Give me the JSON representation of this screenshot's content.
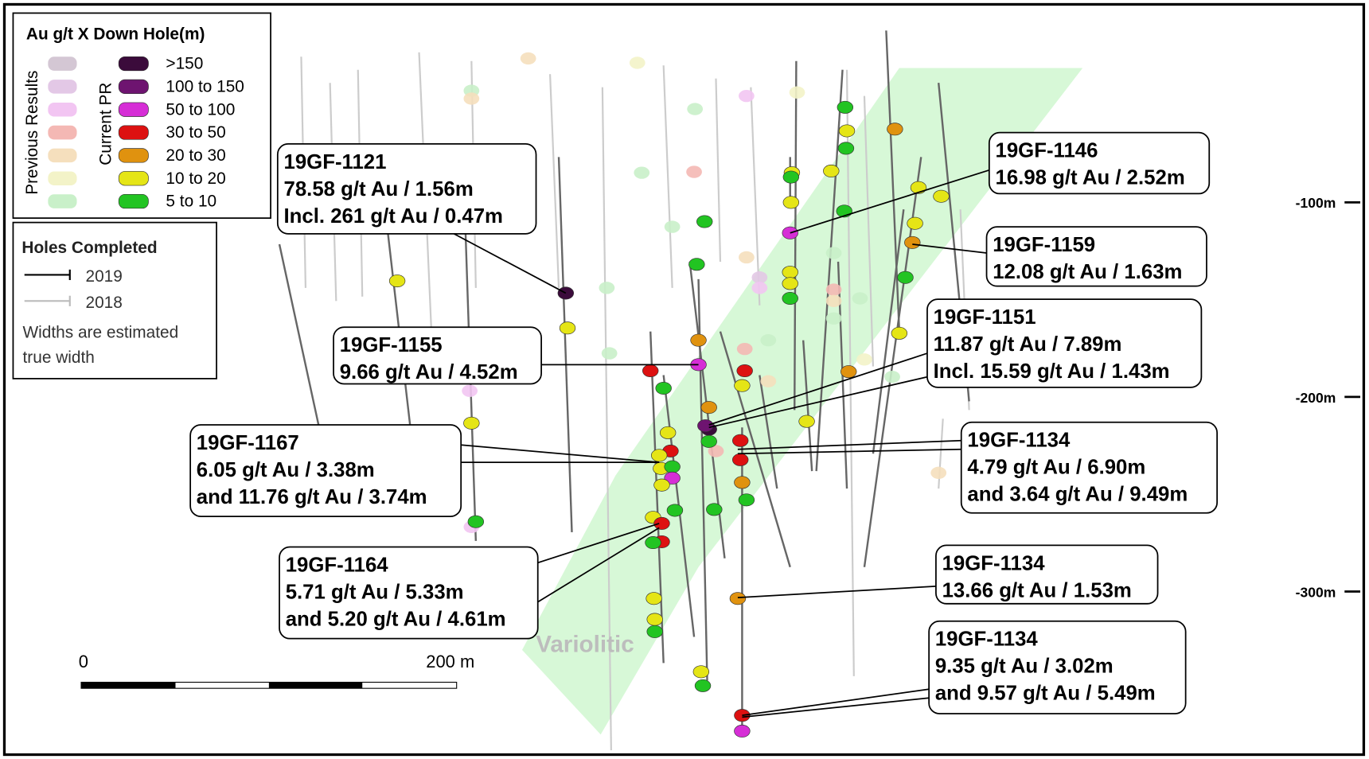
{
  "legend": {
    "title": "Au g/t X Down Hole(m)",
    "group_previous": "Previous Results",
    "group_current": "Current PR",
    "ranges": [
      ">150",
      "100 to 150",
      "50 to 100",
      "30 to 50",
      "20 to 30",
      "10 to 20",
      "5 to 10"
    ]
  },
  "holes_legend": {
    "title": "Holes Completed",
    "items": [
      "2019",
      "2018"
    ],
    "note": [
      "Widths are estimated",
      "true width"
    ]
  },
  "callouts": [
    {
      "lines": [
        "19GF-1121",
        "78.58 g/t Au / 1.56m",
        "Incl. 261 g/t Au / 0.47m"
      ]
    },
    {
      "lines": [
        "19GF-1146",
        "16.98 g/t Au / 2.52m"
      ]
    },
    {
      "lines": [
        "19GF-1159",
        "12.08 g/t Au / 1.63m"
      ]
    },
    {
      "lines": [
        "19GF-1151",
        "11.87 g/t Au / 7.89m",
        "Incl. 15.59 g/t Au / 1.43m"
      ]
    },
    {
      "lines": [
        "19GF-1155",
        "9.66 g/t Au / 4.52m"
      ]
    },
    {
      "lines": [
        "19GF-1167",
        "6.05 g/t Au / 3.38m",
        "and 11.76 g/t Au / 3.74m"
      ]
    },
    {
      "lines": [
        "19GF-1134",
        "4.79 g/t Au / 6.90m",
        "and 3.64 g/t Au / 9.49m"
      ]
    },
    {
      "lines": [
        "19GF-1164",
        "5.71 g/t Au / 5.33m",
        "and 5.20 g/t Au / 4.61m"
      ]
    },
    {
      "lines": [
        "19GF-1134",
        "13.66 g/t Au / 1.53m"
      ]
    },
    {
      "lines": [
        "19GF-1134",
        "9.35 g/t Au / 3.02m",
        "and 9.57 g/t Au / 5.49m"
      ]
    }
  ],
  "depth_labels": [
    "-100m",
    "-200m",
    "-300m"
  ],
  "scale_bar": {
    "start": "0",
    "end": "200 m"
  },
  "zone_label": "Variolitic"
}
